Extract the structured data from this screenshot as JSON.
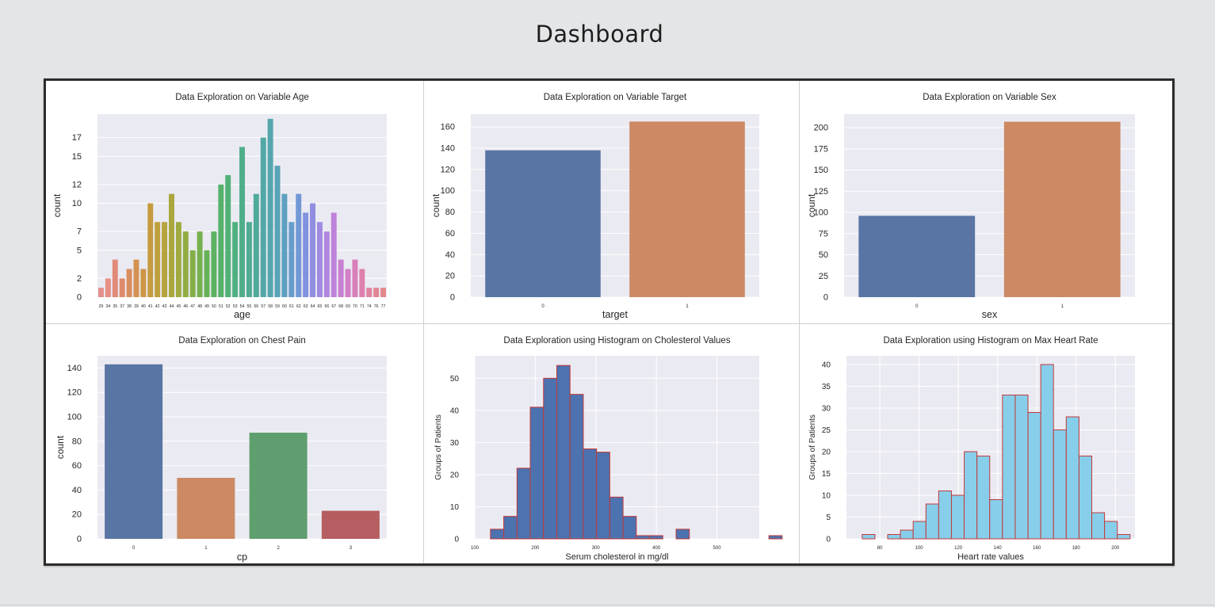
{
  "page": {
    "title": "Dashboard"
  },
  "chart_data": [
    {
      "id": "age",
      "type": "bar",
      "title": "Data Exploration on Variable Age",
      "xlabel": "age",
      "ylabel": "count",
      "categories": [
        "29",
        "34",
        "35",
        "37",
        "38",
        "39",
        "40",
        "41",
        "42",
        "43",
        "44",
        "45",
        "46",
        "47",
        "48",
        "49",
        "50",
        "51",
        "52",
        "53",
        "54",
        "55",
        "56",
        "57",
        "58",
        "59",
        "60",
        "61",
        "62",
        "63",
        "64",
        "65",
        "66",
        "67",
        "68",
        "69",
        "70",
        "71",
        "74",
        "76",
        "77"
      ],
      "values": [
        1,
        2,
        4,
        2,
        3,
        4,
        3,
        10,
        8,
        8,
        11,
        8,
        7,
        5,
        7,
        5,
        7,
        12,
        13,
        8,
        16,
        8,
        11,
        17,
        19,
        14,
        11,
        8,
        11,
        9,
        10,
        8,
        7,
        9,
        4,
        3,
        4,
        3,
        1,
        1,
        1
      ],
      "colors": [
        "#e4908a",
        "#e69086",
        "#e18a7a",
        "#de8a6d",
        "#d98e5e",
        "#d49252",
        "#cf9647",
        "#c69b40",
        "#bea03d",
        "#b5a43d",
        "#aaa73d",
        "#9fab3f",
        "#92ad42",
        "#84af48",
        "#76b14f",
        "#67b257",
        "#5cb261",
        "#55b26b",
        "#51b176",
        "#50b080",
        "#4fae89",
        "#4fac92",
        "#50aa9b",
        "#52a8a4",
        "#55a6ad",
        "#58a3b6",
        "#5ea0c0",
        "#679ccb",
        "#7298d6",
        "#8193de",
        "#918ee2",
        "#a18ae2",
        "#b086df",
        "#bd82d9",
        "#c880d1",
        "#d27fc6",
        "#d97fba",
        "#de80ad",
        "#e182a0",
        "#e28595",
        "#e3888c"
      ],
      "yticks": [
        0,
        2,
        5,
        7,
        10,
        12,
        15,
        17
      ],
      "ylim": [
        0,
        19.5
      ]
    },
    {
      "id": "target",
      "type": "bar",
      "title": "Data Exploration on Variable Target",
      "xlabel": "target",
      "ylabel": "count",
      "categories": [
        "0",
        "1"
      ],
      "values": [
        138,
        165
      ],
      "colors": [
        "#5975a4",
        "#cc8963"
      ],
      "yticks": [
        0,
        20,
        40,
        60,
        80,
        100,
        120,
        140,
        160
      ],
      "ylim": [
        0,
        172
      ]
    },
    {
      "id": "sex",
      "type": "bar",
      "title": "Data Exploration on Variable Sex",
      "xlabel": "sex",
      "ylabel": "count",
      "categories": [
        "0",
        "1"
      ],
      "values": [
        96,
        207
      ],
      "colors": [
        "#5975a4",
        "#cc8963"
      ],
      "yticks": [
        0,
        25,
        50,
        75,
        100,
        125,
        150,
        175,
        200
      ],
      "ylim": [
        0,
        216
      ]
    },
    {
      "id": "cp",
      "type": "bar",
      "title": "Data Exploration on Chest Pain",
      "xlabel": "cp",
      "ylabel": "count",
      "categories": [
        "0",
        "1",
        "2",
        "3"
      ],
      "values": [
        143,
        50,
        87,
        23
      ],
      "colors": [
        "#5975a4",
        "#cc8963",
        "#5f9e6e",
        "#b55d60"
      ],
      "yticks": [
        0,
        20,
        40,
        60,
        80,
        100,
        120,
        140
      ],
      "ylim": [
        0,
        150
      ]
    },
    {
      "id": "chol",
      "type": "histogram",
      "title": "Data Exploration using Histogram on Cholesterol Values",
      "xlabel": "Serum cholesterol in mg/dl",
      "ylabel": "Groups of Patients",
      "bin_start": 126,
      "bin_width": 21.9,
      "counts": [
        3,
        7,
        22,
        41,
        50,
        54,
        45,
        28,
        27,
        13,
        7,
        1,
        1,
        0,
        3,
        0,
        0,
        0,
        0,
        0,
        0,
        1
      ],
      "fill": "#4c72b0",
      "edge": "#c23a3a",
      "xlim": [
        100,
        570
      ],
      "xticks": [
        100,
        200,
        300,
        400,
        500
      ],
      "yticks": [
        0,
        10,
        20,
        30,
        40,
        50
      ],
      "ylim": [
        0,
        57
      ]
    },
    {
      "id": "thalach",
      "type": "histogram",
      "title": "Data Exploration using Histogram on Max Heart Rate",
      "xlabel": "Heart rate values",
      "ylabel": "Groups of Patients",
      "bin_start": 71,
      "bin_width": 6.5,
      "counts": [
        1,
        0,
        1,
        2,
        4,
        8,
        11,
        10,
        20,
        19,
        9,
        33,
        33,
        29,
        40,
        25,
        28,
        19,
        6,
        4,
        1
      ],
      "fill": "#87ceeb",
      "edge": "#c23a3a",
      "xlim": [
        63,
        210
      ],
      "xticks": [
        80,
        100,
        120,
        140,
        160,
        180,
        200
      ],
      "yticks": [
        0,
        5,
        10,
        15,
        20,
        25,
        30,
        35,
        40
      ],
      "ylim": [
        0,
        42
      ]
    }
  ]
}
